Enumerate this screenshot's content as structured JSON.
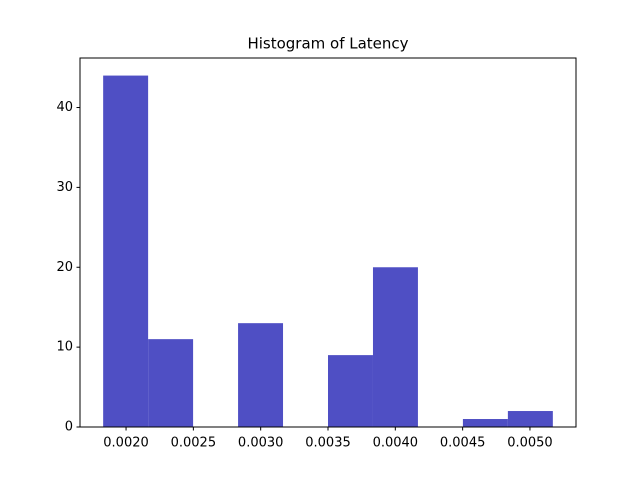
{
  "chart_data": {
    "type": "histogram",
    "title": "Histogram of Latency",
    "bins": [
      0.00183,
      0.002164,
      0.002498,
      0.002832,
      0.003166,
      0.0035,
      0.003834,
      0.004168,
      0.004502,
      0.004836,
      0.00517
    ],
    "values": [
      44,
      11,
      0,
      13,
      0,
      9,
      20,
      0,
      1,
      2
    ],
    "color": "#4f4fc4",
    "xlim": [
      0.001658,
      0.005342
    ],
    "xticks": [
      {
        "value": 0.002,
        "label": "0.0020"
      },
      {
        "value": 0.0025,
        "label": "0.0025"
      },
      {
        "value": 0.003,
        "label": "0.0030"
      },
      {
        "value": 0.0035,
        "label": "0.0035"
      },
      {
        "value": 0.004,
        "label": "0.0040"
      },
      {
        "value": 0.0045,
        "label": "0.0045"
      },
      {
        "value": 0.005,
        "label": "0.0050"
      }
    ],
    "ylim": [
      0,
      46.2
    ],
    "yticks": [
      0,
      10,
      20,
      30,
      40
    ],
    "grid": false
  }
}
